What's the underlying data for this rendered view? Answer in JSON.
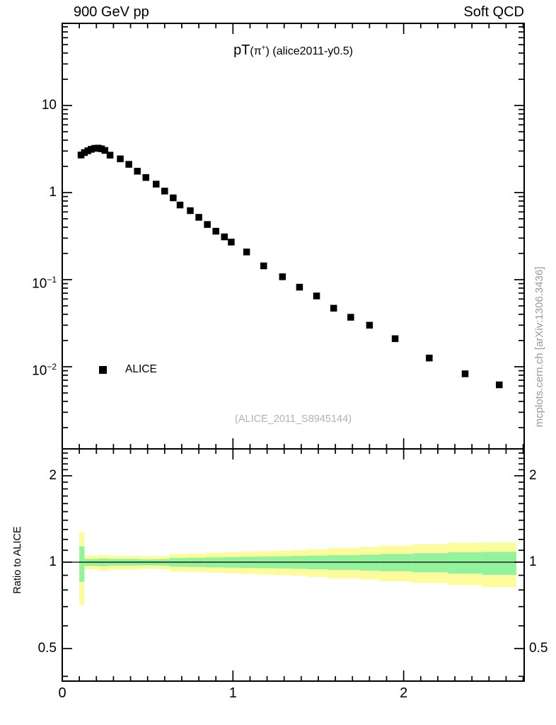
{
  "header": {
    "left": "900 GeV pp",
    "right": "Soft QCD"
  },
  "main_panel": {
    "title": {
      "lead": "pT",
      "pi": "(π",
      "pi_sup": "+",
      "tail": ") (alice2011-y0.5)"
    },
    "legend": {
      "label": "ALICE",
      "marker": "filled-square",
      "marker_color": "#000000"
    },
    "yticks": [
      {
        "v": 10,
        "base": "10",
        "exp": ""
      },
      {
        "v": 1,
        "base": "1",
        "exp": ""
      },
      {
        "v": 0.1,
        "base": "10",
        "exp": "−1"
      },
      {
        "v": 0.01,
        "base": "10",
        "exp": "−2"
      }
    ]
  },
  "ratio_panel": {
    "ylabel": "Ratio to ALICE",
    "yticks": [
      {
        "v": 2,
        "label": "2"
      },
      {
        "v": 1,
        "label": "1"
      },
      {
        "v": 0.5,
        "label": "0.5"
      }
    ]
  },
  "xaxis": {
    "ticks": [
      {
        "v": 0,
        "label": "0"
      },
      {
        "v": 1,
        "label": "1"
      },
      {
        "v": 2,
        "label": "2"
      }
    ]
  },
  "watermarks": {
    "analysis": "(ALICE_2011_S8945144)",
    "site": "mcplots.cern.ch [arXiv:1306.3436]"
  },
  "colors": {
    "marker": "#000000",
    "outer_band": "#fcfc9c",
    "inner_band": "#93f29c",
    "frame": "#000000",
    "watermark_gray": "#b2b2b2",
    "site_gray": "#999999"
  },
  "chart_data": {
    "type": "scatter",
    "title": "pT(π+) (alice2011-y0.5)",
    "beam": "900 GeV pp",
    "group": "Soft QCD",
    "xlim": [
      0,
      2.706
    ],
    "xticks_major": [
      0,
      1,
      2
    ],
    "xticks_minor_step": 0.1,
    "yscale": "log",
    "ylim": [
      0.0011,
      90
    ],
    "grid": false,
    "legend_position": "left-middle",
    "series": [
      {
        "name": "ALICE",
        "marker": "filled-square",
        "color": "#000000",
        "points": [
          [
            0.11,
            2.7
          ],
          [
            0.13,
            2.88
          ],
          [
            0.15,
            3.02
          ],
          [
            0.17,
            3.14
          ],
          [
            0.19,
            3.22
          ],
          [
            0.21,
            3.24
          ],
          [
            0.23,
            3.18
          ],
          [
            0.25,
            3.05
          ],
          [
            0.28,
            2.69
          ],
          [
            0.34,
            2.44
          ],
          [
            0.39,
            2.11
          ],
          [
            0.44,
            1.76
          ],
          [
            0.49,
            1.49
          ],
          [
            0.55,
            1.25
          ],
          [
            0.6,
            1.04
          ],
          [
            0.65,
            0.87
          ],
          [
            0.69,
            0.72
          ],
          [
            0.75,
            0.62
          ],
          [
            0.8,
            0.52
          ],
          [
            0.85,
            0.43
          ],
          [
            0.9,
            0.36
          ],
          [
            0.95,
            0.31
          ],
          [
            0.99,
            0.27
          ],
          [
            1.08,
            0.208
          ],
          [
            1.18,
            0.144
          ],
          [
            1.29,
            0.108
          ],
          [
            1.39,
            0.082
          ],
          [
            1.49,
            0.065
          ],
          [
            1.59,
            0.047
          ],
          [
            1.69,
            0.037
          ],
          [
            1.8,
            0.03
          ],
          [
            1.95,
            0.021
          ],
          [
            2.15,
            0.0126
          ],
          [
            2.36,
            0.0083
          ],
          [
            2.56,
            0.0062
          ]
        ]
      }
    ],
    "ratio": {
      "ylabel": "Ratio to ALICE",
      "yscale": "log",
      "ylim": [
        0.385,
        2.48
      ],
      "yticks_major": [
        0.5,
        1,
        2
      ],
      "unity_line": 1,
      "bands": [
        {
          "x0": 0.1,
          "x1": 0.13,
          "outer": [
            0.71,
            1.27
          ],
          "inner": [
            0.854,
            1.135
          ]
        },
        {
          "x0": 0.13,
          "x1": 0.21,
          "outer": [
            0.945,
            1.053
          ],
          "inner": [
            0.972,
            1.026
          ]
        },
        {
          "x0": 0.21,
          "x1": 0.27,
          "outer": [
            0.934,
            1.06
          ],
          "inner": [
            0.968,
            1.03
          ]
        },
        {
          "x0": 0.27,
          "x1": 0.45,
          "outer": [
            0.942,
            1.052
          ],
          "inner": [
            0.973,
            1.026
          ]
        },
        {
          "x0": 0.45,
          "x1": 0.56,
          "outer": [
            0.948,
            1.048
          ],
          "inner": [
            0.975,
            1.023
          ]
        },
        {
          "x0": 0.56,
          "x1": 0.63,
          "outer": [
            0.944,
            1.051
          ],
          "inner": [
            0.973,
            1.025
          ]
        },
        {
          "x0": 0.63,
          "x1": 0.74,
          "outer": [
            0.928,
            1.068
          ],
          "inner": [
            0.964,
            1.034
          ]
        },
        {
          "x0": 0.74,
          "x1": 0.84,
          "outer": [
            0.924,
            1.072
          ],
          "inner": [
            0.962,
            1.036
          ]
        },
        {
          "x0": 0.84,
          "x1": 0.94,
          "outer": [
            0.919,
            1.078
          ],
          "inner": [
            0.959,
            1.039
          ]
        },
        {
          "x0": 0.94,
          "x1": 1.04,
          "outer": [
            0.915,
            1.082
          ],
          "inner": [
            0.957,
            1.042
          ]
        },
        {
          "x0": 1.04,
          "x1": 1.14,
          "outer": [
            0.91,
            1.088
          ],
          "inner": [
            0.955,
            1.044
          ]
        },
        {
          "x0": 1.14,
          "x1": 1.24,
          "outer": [
            0.906,
            1.092
          ],
          "inner": [
            0.953,
            1.046
          ]
        },
        {
          "x0": 1.24,
          "x1": 1.34,
          "outer": [
            0.902,
            1.096
          ],
          "inner": [
            0.951,
            1.048
          ]
        },
        {
          "x0": 1.34,
          "x1": 1.44,
          "outer": [
            0.897,
            1.102
          ],
          "inner": [
            0.948,
            1.051
          ]
        },
        {
          "x0": 1.44,
          "x1": 1.56,
          "outer": [
            0.888,
            1.11
          ],
          "inner": [
            0.944,
            1.054
          ]
        },
        {
          "x0": 1.56,
          "x1": 1.74,
          "outer": [
            0.878,
            1.122
          ],
          "inner": [
            0.94,
            1.058
          ]
        },
        {
          "x0": 1.74,
          "x1": 1.86,
          "outer": [
            0.87,
            1.13
          ],
          "inner": [
            0.935,
            1.062
          ]
        },
        {
          "x0": 1.86,
          "x1": 2.05,
          "outer": [
            0.858,
            1.142
          ],
          "inner": [
            0.93,
            1.068
          ]
        },
        {
          "x0": 2.05,
          "x1": 2.26,
          "outer": [
            0.846,
            1.155
          ],
          "inner": [
            0.922,
            1.074
          ]
        },
        {
          "x0": 2.26,
          "x1": 2.46,
          "outer": [
            0.832,
            1.168
          ],
          "inner": [
            0.912,
            1.082
          ]
        },
        {
          "x0": 2.46,
          "x1": 2.66,
          "outer": [
            0.818,
            1.172
          ],
          "inner": [
            0.903,
            1.086
          ]
        }
      ]
    }
  }
}
